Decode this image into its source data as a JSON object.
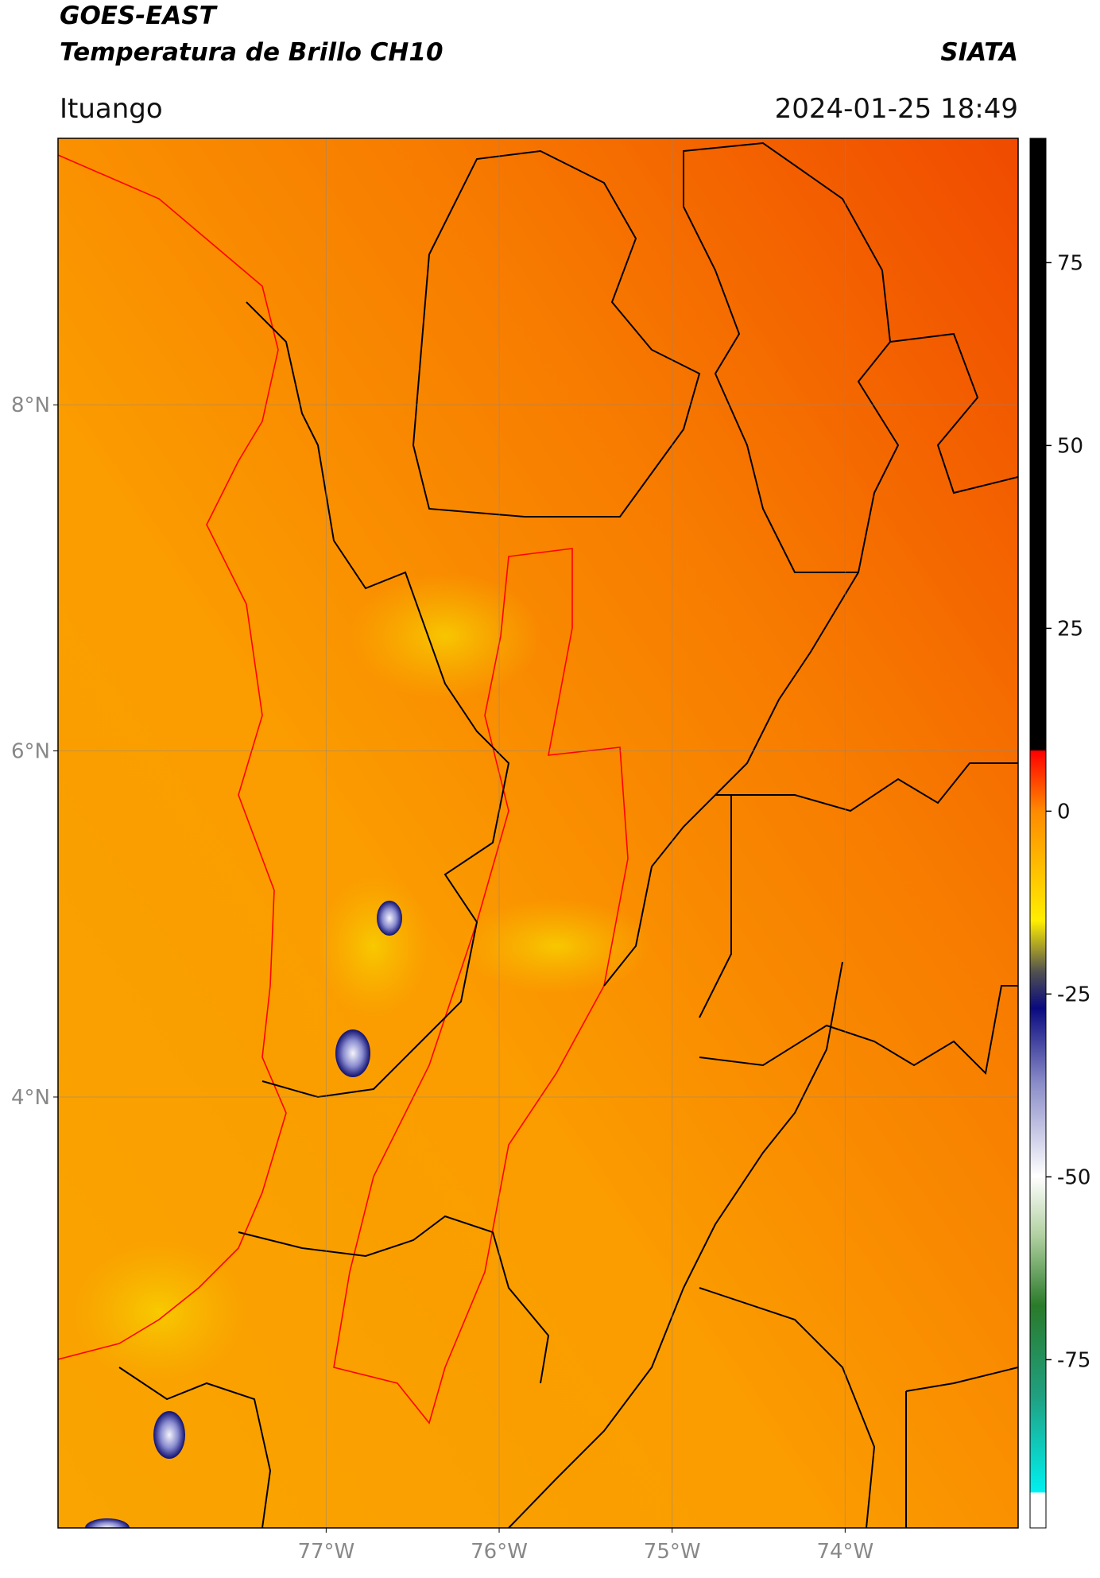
{
  "header": {
    "title_line1": "GOES-EAST",
    "title_line2": "Temperatura de Brillo CH10",
    "source": "SIATA",
    "location": "Ituango",
    "datetime": "2024-01-25 18:49"
  },
  "map": {
    "latlim": [
      1.51,
      9.54
    ],
    "lonlim": [
      -78.55,
      -73.0
    ],
    "lat_ticks": [
      {
        "value": 8,
        "label": "8°N"
      },
      {
        "value": 6,
        "label": "6°N"
      },
      {
        "value": 4,
        "label": "4°N"
      }
    ],
    "lon_ticks": [
      {
        "value": -77,
        "label": "77°W"
      },
      {
        "value": -76,
        "label": "76°W"
      },
      {
        "value": -75,
        "label": "75°W"
      },
      {
        "value": -74,
        "label": "74°W"
      }
    ]
  },
  "colorbar": {
    "lim": [
      -98,
      92
    ],
    "ticks": [
      75,
      50,
      25,
      0,
      -25,
      -50,
      -75
    ]
  }
}
